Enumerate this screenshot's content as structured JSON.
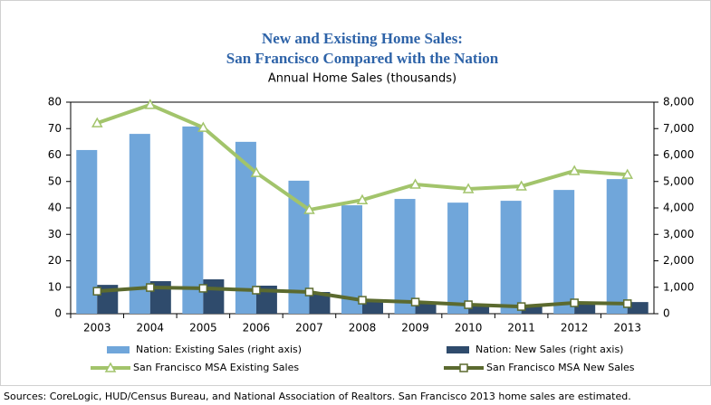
{
  "chart_data": {
    "type": "bar-line",
    "title": "New and Existing Home Sales:",
    "title_line2": "San Francisco Compared with the Nation",
    "subtitle": "Annual Home Sales (thousands)",
    "source": "Sources: CoreLogic, HUD/Census Bureau, and National Association of Realtors. San Francisco 2013 home sales are estimated.",
    "categories": [
      "2003",
      "2004",
      "2005",
      "2006",
      "2007",
      "2008",
      "2009",
      "2010",
      "2011",
      "2012",
      "2013"
    ],
    "ylim": [
      0,
      80
    ],
    "yticks": [
      0,
      10,
      20,
      30,
      40,
      50,
      60,
      70,
      80
    ],
    "y2lim": [
      0,
      8000
    ],
    "y2ticks": [
      0,
      {
        "value": 1000,
        "label": "1,000"
      },
      {
        "value": 2000,
        "label": "2,000"
      },
      {
        "value": 3000,
        "label": "3,000"
      },
      {
        "value": 4000,
        "label": "4,000"
      },
      {
        "value": 5000,
        "label": "5,000"
      },
      {
        "value": 6000,
        "label": "6,000"
      },
      {
        "value": 7000,
        "label": "7,000"
      },
      {
        "value": 8000,
        "label": "8,000"
      }
    ],
    "series": [
      {
        "name": "Nation: Existing Sales (right axis)",
        "type": "bar",
        "axis": "y2",
        "color": "#70a6da",
        "values": [
          6190,
          6800,
          7080,
          6500,
          5030,
          4100,
          4340,
          4200,
          4270,
          4680,
          5090
        ]
      },
      {
        "name": "Nation: New Sales (right axis)",
        "type": "bar",
        "axis": "y2",
        "color": "#2f4b6c",
        "values": [
          1090,
          1230,
          1300,
          1060,
          820,
          480,
          380,
          340,
          340,
          380,
          440
        ]
      },
      {
        "name": "San Francisco MSA Existing Sales",
        "type": "line",
        "marker": "triangle",
        "color": "#a2c46b",
        "values": [
          72.1,
          79,
          70.4,
          53.3,
          39.3,
          43,
          48.9,
          47.2,
          48.2,
          54,
          52.6
        ]
      },
      {
        "name": "San Francisco MSA New Sales",
        "type": "line",
        "marker": "square",
        "color": "#5b6a2f",
        "values": [
          8.5,
          9.9,
          9.6,
          8.9,
          8.2,
          5.1,
          4.4,
          3.4,
          2.7,
          4.1,
          3.8
        ]
      }
    ]
  }
}
